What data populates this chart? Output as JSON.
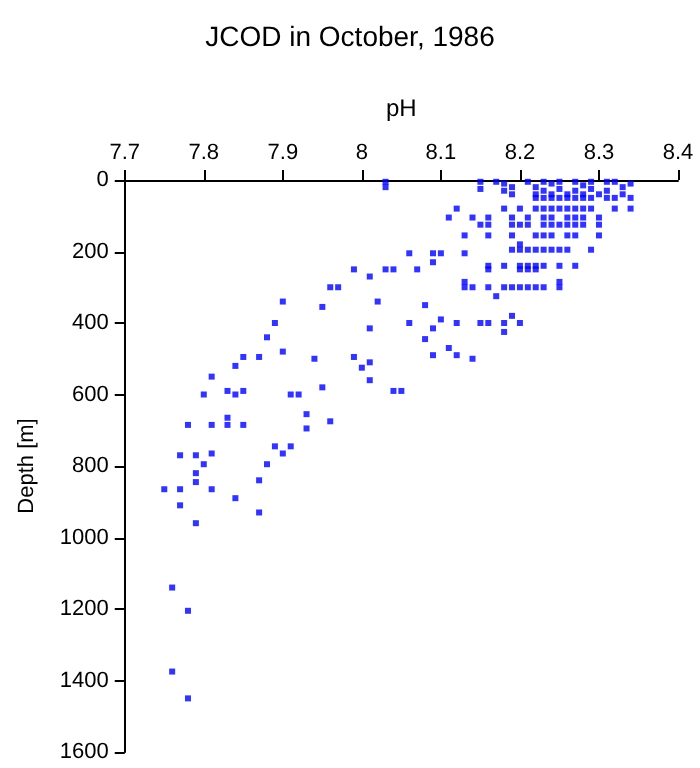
{
  "chart_data": {
    "type": "scatter",
    "title": "JCOD in October, 1986",
    "xlabel": "pH",
    "ylabel": "Depth [m]",
    "xlim": [
      7.7,
      8.4
    ],
    "xticks": [
      7.7,
      7.8,
      7.9,
      8,
      8.1,
      8.2,
      8.3,
      8.4
    ],
    "ylim": [
      1600,
      0
    ],
    "yticks": [
      0,
      200,
      400,
      600,
      800,
      1000,
      1200,
      1400,
      1600
    ],
    "grid": false,
    "marker": "square",
    "series": [
      {
        "color": "#0000ff",
        "x": [
          8.03,
          8.03,
          8.15,
          8.15,
          8.17,
          8.18,
          8.18,
          8.19,
          8.19,
          8.21,
          8.22,
          8.22,
          8.23,
          8.23,
          8.24,
          8.24,
          8.25,
          8.25,
          8.26,
          8.27,
          8.27,
          8.28,
          8.28,
          8.29,
          8.29,
          8.3,
          8.31,
          8.31,
          8.32,
          8.33,
          8.33,
          8.34,
          8.22,
          8.23,
          8.24,
          8.25,
          8.26,
          8.27,
          8.28,
          8.29,
          8.31,
          8.32,
          8.34,
          8.12,
          8.18,
          8.2,
          8.22,
          8.23,
          8.24,
          8.25,
          8.26,
          8.27,
          8.28,
          8.29,
          8.32,
          8.34,
          8.11,
          8.14,
          8.16,
          8.19,
          8.21,
          8.23,
          8.24,
          8.26,
          8.27,
          8.28,
          8.3,
          8.15,
          8.16,
          8.19,
          8.2,
          8.21,
          8.23,
          8.24,
          8.25,
          8.26,
          8.27,
          8.28,
          8.3,
          8.13,
          8.16,
          8.19,
          8.22,
          8.23,
          8.24,
          8.26,
          8.27,
          8.3,
          8.2,
          8.19,
          8.2,
          8.21,
          8.22,
          8.23,
          8.24,
          8.25,
          8.26,
          8.29,
          8.06,
          8.09,
          8.1,
          8.13,
          8.09,
          8.16,
          8.18,
          8.2,
          8.21,
          8.22,
          8.23,
          8.25,
          8.27,
          7.99,
          8.03,
          8.04,
          8.07,
          8.16,
          8.2,
          8.21,
          8.22,
          8.01,
          8.13,
          8.25,
          7.96,
          7.97,
          8.13,
          8.14,
          8.16,
          8.18,
          8.19,
          8.2,
          8.21,
          8.22,
          8.23,
          8.25,
          8.17,
          7.9,
          8.02,
          8.08,
          7.95,
          8.19,
          8.1,
          7.89,
          8.06,
          8.12,
          8.15,
          8.16,
          8.18,
          8.2,
          8.01,
          8.09,
          8.18,
          7.88,
          8.08,
          8.11,
          7.9,
          8.09,
          8.12,
          7.85,
          7.87,
          7.99,
          7.94,
          8.14,
          8.01,
          7.84,
          8.0,
          7.81,
          8.01,
          7.95,
          7.83,
          7.85,
          8.04,
          8.05,
          7.8,
          7.84,
          7.91,
          7.92,
          7.93,
          7.83,
          7.96,
          7.78,
          7.81,
          7.83,
          7.85,
          7.93,
          7.89,
          7.91,
          7.81,
          7.9,
          7.77,
          7.79,
          7.88,
          7.8,
          7.79,
          7.87,
          7.79,
          7.75,
          7.77,
          7.81,
          7.84,
          7.77,
          7.87,
          7.79,
          7.76,
          7.78,
          7.76,
          7.78
        ],
        "values": [
          5,
          20,
          5,
          25,
          5,
          10,
          30,
          20,
          40,
          5,
          20,
          40,
          5,
          30,
          10,
          40,
          5,
          25,
          40,
          5,
          30,
          15,
          40,
          5,
          25,
          40,
          5,
          30,
          5,
          20,
          40,
          10,
          50,
          50,
          50,
          50,
          50,
          50,
          50,
          50,
          50,
          50,
          50,
          80,
          80,
          80,
          80,
          80,
          80,
          80,
          80,
          80,
          80,
          80,
          80,
          80,
          105,
          105,
          105,
          105,
          105,
          105,
          105,
          105,
          105,
          105,
          105,
          125,
          125,
          125,
          125,
          125,
          125,
          125,
          125,
          125,
          125,
          125,
          125,
          155,
          155,
          155,
          155,
          155,
          155,
          155,
          155,
          155,
          180,
          195,
          195,
          195,
          195,
          195,
          195,
          195,
          195,
          195,
          205,
          205,
          205,
          205,
          230,
          240,
          240,
          240,
          240,
          240,
          240,
          240,
          240,
          250,
          250,
          250,
          250,
          250,
          250,
          250,
          250,
          270,
          285,
          285,
          300,
          300,
          300,
          300,
          300,
          300,
          300,
          300,
          300,
          300,
          300,
          300,
          325,
          340,
          340,
          350,
          355,
          380,
          390,
          400,
          400,
          400,
          400,
          400,
          400,
          400,
          415,
          415,
          425,
          440,
          445,
          470,
          480,
          490,
          490,
          495,
          495,
          495,
          500,
          500,
          510,
          520,
          525,
          550,
          560,
          580,
          590,
          590,
          590,
          590,
          600,
          600,
          600,
          600,
          655,
          665,
          675,
          685,
          685,
          685,
          685,
          695,
          745,
          745,
          765,
          765,
          770,
          770,
          795,
          795,
          820,
          840,
          845,
          865,
          865,
          865,
          890,
          910,
          930,
          960,
          1140,
          1205,
          1375,
          1450
        ]
      }
    ]
  }
}
